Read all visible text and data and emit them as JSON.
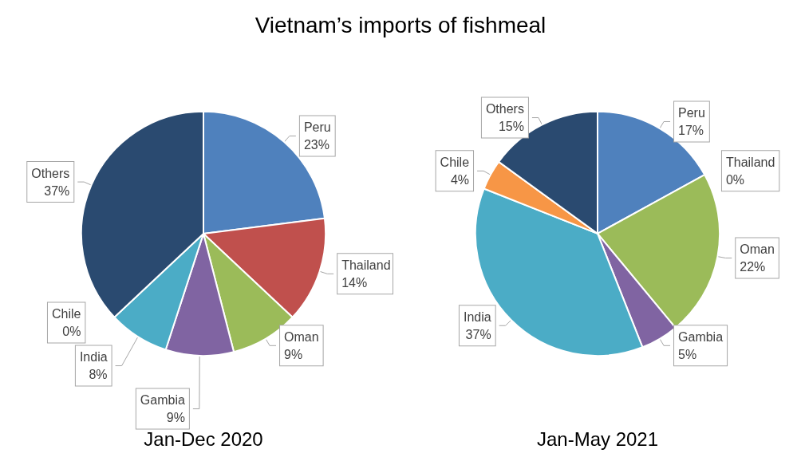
{
  "chart_data": [
    {
      "type": "pie",
      "title": "Vietnam’s imports of fishmeal",
      "xlabel": "Jan-Dec 2020",
      "categories": [
        "Peru",
        "Thailand",
        "Oman",
        "Gambia",
        "India",
        "Chile",
        "Others"
      ],
      "values": [
        23,
        14,
        9,
        9,
        8,
        0,
        37
      ],
      "value_labels": [
        "23%",
        "14%",
        "9%",
        "9%",
        "8%",
        "0%",
        "37%"
      ],
      "colors": [
        "#4f81bd",
        "#c0504d",
        "#9bbb59",
        "#8064a2",
        "#4bacc6",
        "#f79646",
        "#2a4a70"
      ],
      "legend": false
    },
    {
      "type": "pie",
      "xlabel": "Jan-May 2021",
      "categories": [
        "Peru",
        "Thailand",
        "Oman",
        "Gambia",
        "India",
        "Chile",
        "Others"
      ],
      "values": [
        17,
        0,
        22,
        5,
        37,
        4,
        15
      ],
      "value_labels": [
        "17%",
        "0%",
        "22%",
        "5%",
        "37%",
        "4%",
        "15%"
      ],
      "colors": [
        "#4f81bd",
        "#c0504d",
        "#9bbb59",
        "#8064a2",
        "#4bacc6",
        "#f79646",
        "#2a4a70"
      ],
      "legend": false
    }
  ]
}
